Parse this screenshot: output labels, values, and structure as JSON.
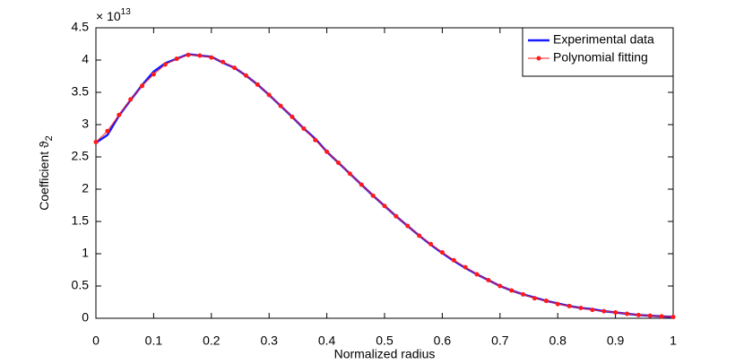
{
  "chart_data": {
    "type": "line",
    "xlabel": "Normalized radius",
    "ylabel": {
      "text": "Coefficient ϑ",
      "subscript": "2"
    },
    "y_multiplier": {
      "base": "× 10",
      "exponent": "13"
    },
    "x": [
      0,
      0.02,
      0.04,
      0.06,
      0.08,
      0.1,
      0.12,
      0.14,
      0.16,
      0.18,
      0.2,
      0.22,
      0.24,
      0.26,
      0.28,
      0.3,
      0.32,
      0.34,
      0.36,
      0.38,
      0.4,
      0.42,
      0.44,
      0.46,
      0.48,
      0.5,
      0.52,
      0.54,
      0.56,
      0.58,
      0.6,
      0.62,
      0.64,
      0.66,
      0.68,
      0.7,
      0.72,
      0.74,
      0.76,
      0.78,
      0.8,
      0.82,
      0.84,
      0.86,
      0.88,
      0.9,
      0.92,
      0.94,
      0.96,
      0.98,
      1
    ],
    "series": [
      {
        "name": "Experimental data",
        "color": "#1a1aff",
        "markers": false,
        "values": [
          2.72,
          2.84,
          3.14,
          3.38,
          3.61,
          3.82,
          3.95,
          4.02,
          4.09,
          4.07,
          4.05,
          3.96,
          3.88,
          3.76,
          3.62,
          3.46,
          3.29,
          3.12,
          2.94,
          2.78,
          2.58,
          2.41,
          2.24,
          2.07,
          1.9,
          1.74,
          1.58,
          1.43,
          1.28,
          1.14,
          1.01,
          0.89,
          0.78,
          0.68,
          0.59,
          0.5,
          0.43,
          0.37,
          0.32,
          0.27,
          0.23,
          0.19,
          0.16,
          0.14,
          0.11,
          0.09,
          0.07,
          0.05,
          0.04,
          0.03,
          0.02
        ]
      },
      {
        "name": "Polynomial fitting",
        "color": "#ff1a1a",
        "markers": true,
        "values": [
          2.73,
          2.9,
          3.15,
          3.39,
          3.6,
          3.78,
          3.93,
          4.02,
          4.08,
          4.07,
          4.04,
          3.97,
          3.88,
          3.76,
          3.62,
          3.46,
          3.29,
          3.12,
          2.94,
          2.76,
          2.58,
          2.41,
          2.24,
          2.07,
          1.9,
          1.74,
          1.58,
          1.43,
          1.28,
          1.15,
          1.02,
          0.9,
          0.79,
          0.68,
          0.59,
          0.5,
          0.43,
          0.37,
          0.31,
          0.27,
          0.22,
          0.19,
          0.16,
          0.13,
          0.11,
          0.09,
          0.07,
          0.05,
          0.04,
          0.03,
          0.02
        ]
      }
    ],
    "xlim": [
      0,
      1
    ],
    "xticks": [
      0,
      0.1,
      0.2,
      0.3,
      0.4,
      0.5,
      0.6,
      0.7,
      0.8,
      0.9,
      1
    ],
    "ylim": [
      0,
      4.5
    ],
    "yticks": [
      0,
      0.5,
      1,
      1.5,
      2,
      2.5,
      3,
      3.5,
      4,
      4.5
    ],
    "grid": false,
    "legend": "top-right"
  }
}
